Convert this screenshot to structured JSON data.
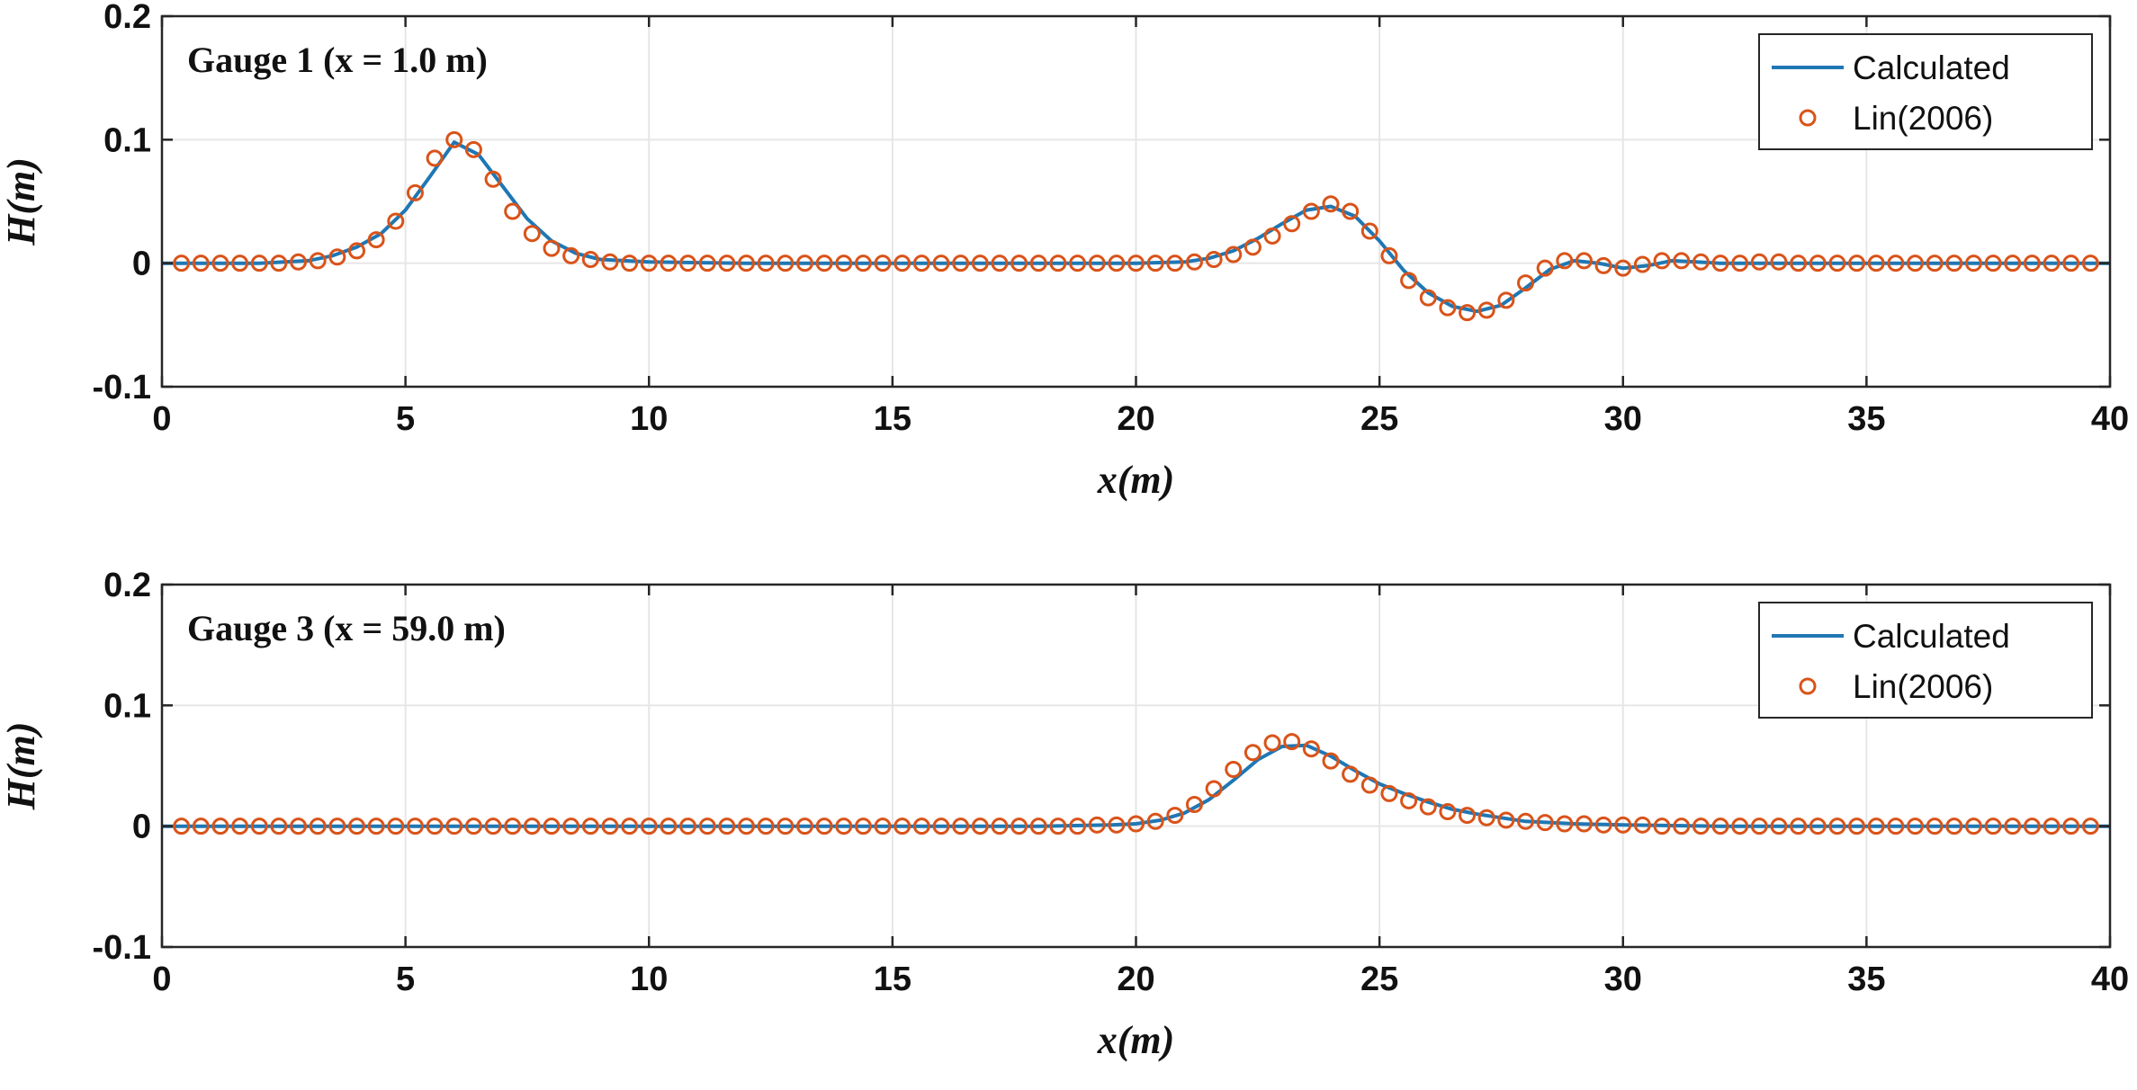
{
  "chart_data": [
    {
      "type": "line",
      "annotation": "Gauge 1 (x = 1.0 m)",
      "xlabel": "x(m)",
      "ylabel": "H(m)",
      "xlim": [
        0,
        40
      ],
      "ylim": [
        -0.1,
        0.2
      ],
      "xticks": [
        0,
        5,
        10,
        15,
        20,
        25,
        30,
        35,
        40
      ],
      "yticks": [
        -0.1,
        0,
        0.1,
        0.2
      ],
      "xtick_labels": [
        "0",
        "5",
        "10",
        "15",
        "20",
        "25",
        "30",
        "35",
        "40"
      ],
      "ytick_labels": [
        "-0.1",
        "0",
        "0.1",
        "0.2"
      ],
      "grid": true,
      "legend_position": "top-right",
      "legend": [
        "Calculated",
        "Lin(2006)"
      ],
      "series": [
        {
          "name": "Calculated",
          "style": "line",
          "color": "#1f77b4",
          "x": [
            0,
            1,
            2,
            3,
            3.5,
            4,
            4.5,
            5,
            5.5,
            6,
            6.5,
            7,
            7.5,
            8,
            8.5,
            9,
            10,
            12,
            15,
            18,
            20,
            21,
            21.5,
            22,
            22.5,
            23,
            23.5,
            24,
            24.5,
            25,
            25.5,
            26,
            26.5,
            27,
            27.5,
            28,
            28.5,
            29,
            29.5,
            30,
            30.5,
            31,
            31.5,
            32,
            33,
            35,
            40
          ],
          "y": [
            0,
            0,
            0,
            0.002,
            0.006,
            0.013,
            0.024,
            0.043,
            0.07,
            0.098,
            0.088,
            0.062,
            0.036,
            0.018,
            0.008,
            0.003,
            0.001,
            0,
            0,
            0,
            0,
            0.001,
            0.004,
            0.01,
            0.02,
            0.032,
            0.043,
            0.046,
            0.038,
            0.018,
            -0.006,
            -0.024,
            -0.035,
            -0.039,
            -0.034,
            -0.02,
            -0.005,
            0.002,
            0,
            -0.004,
            -0.002,
            0.002,
            0.001,
            0,
            0,
            0,
            0
          ]
        },
        {
          "name": "Lin(2006)",
          "style": "markers",
          "marker": "circle",
          "color": "#d95319",
          "x": [
            0.4,
            0.8,
            1.2,
            1.6,
            2.0,
            2.4,
            2.8,
            3.2,
            3.6,
            4.0,
            4.4,
            4.8,
            5.2,
            5.6,
            6.0,
            6.4,
            6.8,
            7.2,
            7.6,
            8.0,
            8.4,
            8.8,
            9.2,
            9.6,
            10.0,
            10.4,
            10.8,
            11.2,
            11.6,
            12.0,
            12.4,
            12.8,
            13.2,
            13.6,
            14.0,
            14.4,
            14.8,
            15.2,
            15.6,
            16.0,
            16.4,
            16.8,
            17.2,
            17.6,
            18.0,
            18.4,
            18.8,
            19.2,
            19.6,
            20.0,
            20.4,
            20.8,
            21.2,
            21.6,
            22.0,
            22.4,
            22.8,
            23.2,
            23.6,
            24.0,
            24.4,
            24.8,
            25.2,
            25.6,
            26.0,
            26.4,
            26.8,
            27.2,
            27.6,
            28.0,
            28.4,
            28.8,
            29.2,
            29.6,
            30.0,
            30.4,
            30.8,
            31.2,
            31.6,
            32.0,
            32.4,
            32.8,
            33.2,
            33.6,
            34.0,
            34.4,
            34.8,
            35.2,
            35.6,
            36.0,
            36.4,
            36.8,
            37.2,
            37.6,
            38.0,
            38.4,
            38.8,
            39.2,
            39.6
          ],
          "y": [
            0,
            0,
            0,
            0,
            0,
            0,
            0.001,
            0.002,
            0.005,
            0.01,
            0.019,
            0.034,
            0.057,
            0.085,
            0.1,
            0.092,
            0.068,
            0.042,
            0.024,
            0.012,
            0.006,
            0.003,
            0.001,
            0,
            0,
            0,
            0,
            0,
            0,
            0,
            0,
            0,
            0,
            0,
            0,
            0,
            0,
            0,
            0,
            0,
            0,
            0,
            0,
            0,
            0,
            0,
            0,
            0,
            0,
            0,
            0,
            0,
            0.001,
            0.003,
            0.007,
            0.013,
            0.022,
            0.032,
            0.042,
            0.048,
            0.042,
            0.026,
            0.006,
            -0.014,
            -0.028,
            -0.036,
            -0.04,
            -0.038,
            -0.03,
            -0.016,
            -0.004,
            0.002,
            0.002,
            -0.002,
            -0.004,
            -0.001,
            0.002,
            0.002,
            0.001,
            0,
            0,
            0.001,
            0.001,
            0,
            0,
            0,
            0,
            0,
            0,
            0,
            0,
            0,
            0,
            0,
            0,
            0,
            0,
            0,
            0
          ]
        }
      ]
    },
    {
      "type": "line",
      "annotation": "Gauge 3 (x = 59.0 m)",
      "xlabel": "x(m)",
      "ylabel": "H(m)",
      "xlim": [
        0,
        40
      ],
      "ylim": [
        -0.1,
        0.2
      ],
      "xticks": [
        0,
        5,
        10,
        15,
        20,
        25,
        30,
        35,
        40
      ],
      "yticks": [
        -0.1,
        0,
        0.1,
        0.2
      ],
      "xtick_labels": [
        "0",
        "5",
        "10",
        "15",
        "20",
        "25",
        "30",
        "35",
        "40"
      ],
      "ytick_labels": [
        "-0.1",
        "0",
        "0.1",
        "0.2"
      ],
      "grid": true,
      "legend_position": "top-right",
      "legend": [
        "Calculated",
        "Lin(2006)"
      ],
      "series": [
        {
          "name": "Calculated",
          "style": "line",
          "color": "#1f77b4",
          "x": [
            0,
            5,
            10,
            15,
            18,
            19.5,
            20,
            20.5,
            21,
            21.5,
            22,
            22.5,
            23,
            23.5,
            24,
            24.5,
            25,
            25.5,
            26,
            26.5,
            27,
            27.5,
            28,
            28.5,
            29,
            30,
            32,
            35,
            40
          ],
          "y": [
            0,
            0,
            0,
            0,
            0,
            0.001,
            0.002,
            0.005,
            0.011,
            0.022,
            0.038,
            0.055,
            0.066,
            0.067,
            0.058,
            0.046,
            0.035,
            0.027,
            0.02,
            0.014,
            0.01,
            0.007,
            0.004,
            0.003,
            0.002,
            0.001,
            0,
            0,
            0
          ]
        },
        {
          "name": "Lin(2006)",
          "style": "markers",
          "marker": "circle",
          "color": "#d95319",
          "x": [
            0.4,
            0.8,
            1.2,
            1.6,
            2.0,
            2.4,
            2.8,
            3.2,
            3.6,
            4.0,
            4.4,
            4.8,
            5.2,
            5.6,
            6.0,
            6.4,
            6.8,
            7.2,
            7.6,
            8.0,
            8.4,
            8.8,
            9.2,
            9.6,
            10.0,
            10.4,
            10.8,
            11.2,
            11.6,
            12.0,
            12.4,
            12.8,
            13.2,
            13.6,
            14.0,
            14.4,
            14.8,
            15.2,
            15.6,
            16.0,
            16.4,
            16.8,
            17.2,
            17.6,
            18.0,
            18.4,
            18.8,
            19.2,
            19.6,
            20.0,
            20.4,
            20.8,
            21.2,
            21.6,
            22.0,
            22.4,
            22.8,
            23.2,
            23.6,
            24.0,
            24.4,
            24.8,
            25.2,
            25.6,
            26.0,
            26.4,
            26.8,
            27.2,
            27.6,
            28.0,
            28.4,
            28.8,
            29.2,
            29.6,
            30.0,
            30.4,
            30.8,
            31.2,
            31.6,
            32.0,
            32.4,
            32.8,
            33.2,
            33.6,
            34.0,
            34.4,
            34.8,
            35.2,
            35.6,
            36.0,
            36.4,
            36.8,
            37.2,
            37.6,
            38.0,
            38.4,
            38.8,
            39.2,
            39.6
          ],
          "y": [
            0,
            0,
            0,
            0,
            0,
            0,
            0,
            0,
            0,
            0,
            0,
            0,
            0,
            0,
            0,
            0,
            0,
            0,
            0,
            0,
            0,
            0,
            0,
            0,
            0,
            0,
            0,
            0,
            0,
            0,
            0,
            0,
            0,
            0,
            0,
            0,
            0,
            0,
            0,
            0,
            0,
            0,
            0,
            0,
            0,
            0,
            0,
            0.001,
            0.001,
            0.002,
            0.004,
            0.009,
            0.018,
            0.031,
            0.047,
            0.061,
            0.069,
            0.07,
            0.064,
            0.054,
            0.043,
            0.034,
            0.027,
            0.021,
            0.016,
            0.012,
            0.009,
            0.007,
            0.005,
            0.004,
            0.003,
            0.002,
            0.002,
            0.001,
            0.001,
            0.001,
            0,
            0,
            0,
            0,
            0,
            0,
            0,
            0,
            0,
            0,
            0,
            0,
            0,
            0,
            0,
            0,
            0,
            0,
            0,
            0,
            0,
            0,
            0
          ]
        }
      ]
    }
  ]
}
